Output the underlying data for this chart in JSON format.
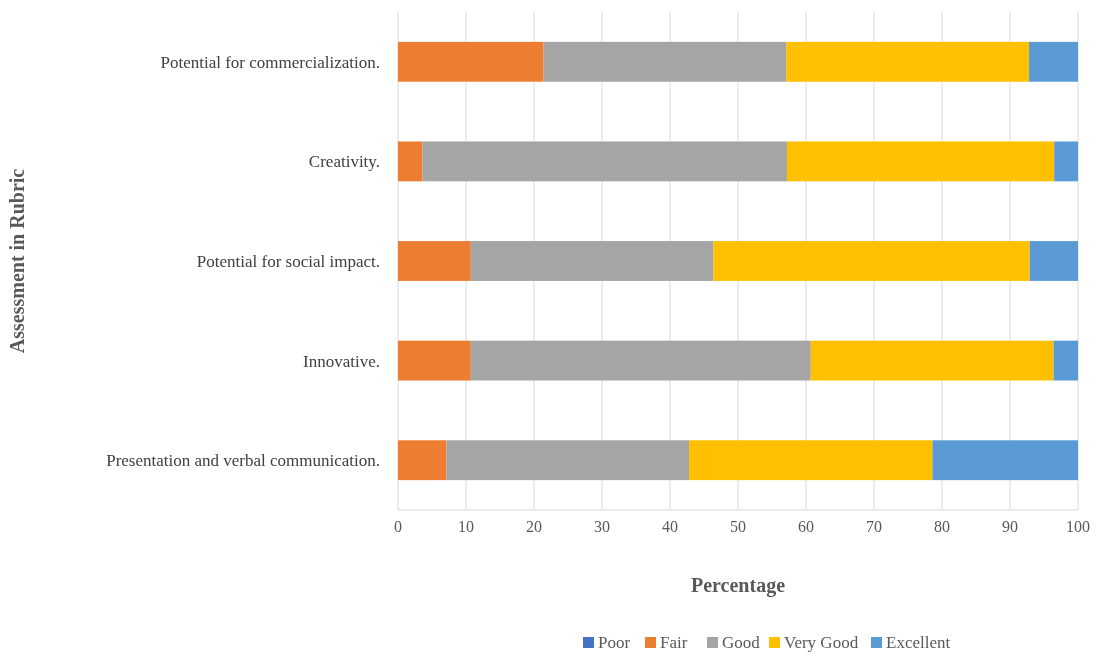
{
  "chart_data": {
    "type": "bar",
    "orientation": "horizontal",
    "stacked": true,
    "xlabel": "Percentage",
    "ylabel": "Assessment in Rubric",
    "categories": [
      "Potential for commercialization.",
      "Creativity.",
      "Potential for social impact.",
      "Innovative.",
      "Presentation and verbal communication."
    ],
    "series": [
      {
        "name": "Poor",
        "color": "#4472c4",
        "values": [
          0,
          0,
          0,
          0,
          0
        ]
      },
      {
        "name": "Fair",
        "color": "#ed7d31",
        "values": [
          21.4,
          3.6,
          10.7,
          10.7,
          7.1
        ]
      },
      {
        "name": "Good",
        "color": "#a5a5a5",
        "values": [
          35.7,
          53.6,
          35.7,
          50,
          35.7
        ]
      },
      {
        "name": "Very Good",
        "color": "#ffc000",
        "values": [
          35.7,
          39.3,
          46.5,
          35.7,
          35.8
        ]
      },
      {
        "name": "Excellent",
        "color": "#5b9bd5",
        "values": [
          7.2,
          3.5,
          7.1,
          3.6,
          21.4
        ]
      }
    ],
    "xlim": [
      0,
      100
    ],
    "xticks": [
      0,
      10,
      20,
      30,
      40,
      50,
      60,
      70,
      80,
      90,
      100
    ],
    "grid": "x",
    "legend": "bottom"
  }
}
